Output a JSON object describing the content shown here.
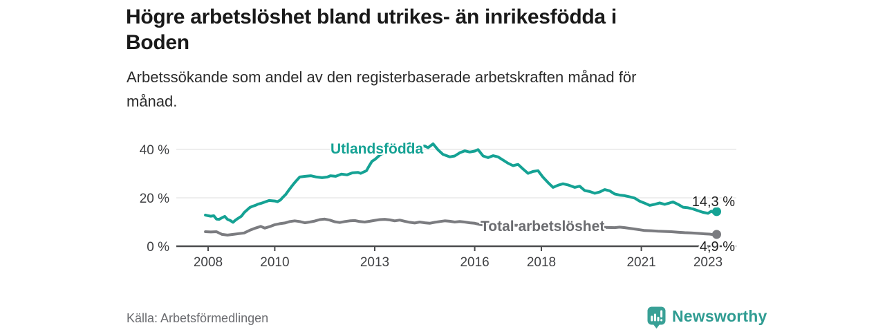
{
  "header": {
    "title_lines": [
      "Högre arbetslöshet bland utrikes- än inrikesfödda i",
      "Boden"
    ],
    "subtitle_lines": [
      "Arbetssökande som andel av den registerbaserade arbetskraften månad för",
      "månad."
    ]
  },
  "footer": {
    "source": "Källa: Arbetsförmedlingen",
    "brand": "Newsworthy",
    "brand_color": "#2f9c92",
    "brand_icon_color": "#38a096"
  },
  "chart_data": {
    "type": "line",
    "grid": true,
    "grid_color": "#dcdcdc",
    "axis_color": "#4a4b4d",
    "tick_label_color": "#3f4043",
    "x_axis": {
      "range": [
        2007.05,
        2023.85
      ],
      "ticks": [
        {
          "year": 2008,
          "label": "2008"
        },
        {
          "year": 2010,
          "label": "2010"
        },
        {
          "year": 2013,
          "label": "2013"
        },
        {
          "year": 2016,
          "label": "2016"
        },
        {
          "year": 2018,
          "label": "2018"
        },
        {
          "year": 2021,
          "label": "2021"
        },
        {
          "year": 2023,
          "label": "2023"
        }
      ]
    },
    "y_axis": {
      "range": [
        0,
        45
      ],
      "ticks": [
        {
          "value": 0,
          "label": "0 %"
        },
        {
          "value": 20,
          "label": "20 %"
        },
        {
          "value": 40,
          "label": "40 %"
        }
      ]
    },
    "series": [
      {
        "name": "Utlandsfödda",
        "color": "#15a294",
        "label_color": "#15a294",
        "end_label": "14,3 %",
        "end_value": 14.3,
        "points": [
          [
            2007.92,
            12.9
          ],
          [
            2008.0,
            12.6
          ],
          [
            2008.08,
            12.4
          ],
          [
            2008.17,
            12.6
          ],
          [
            2008.25,
            11.2
          ],
          [
            2008.33,
            11.1
          ],
          [
            2008.42,
            11.8
          ],
          [
            2008.5,
            12.3
          ],
          [
            2008.58,
            11.1
          ],
          [
            2008.67,
            10.6
          ],
          [
            2008.75,
            9.9
          ],
          [
            2008.83,
            10.9
          ],
          [
            2008.92,
            11.7
          ],
          [
            2009.0,
            12.4
          ],
          [
            2009.08,
            13.9
          ],
          [
            2009.17,
            15.0
          ],
          [
            2009.25,
            16.0
          ],
          [
            2009.33,
            16.5
          ],
          [
            2009.42,
            16.9
          ],
          [
            2009.5,
            17.4
          ],
          [
            2009.58,
            17.7
          ],
          [
            2009.67,
            18.1
          ],
          [
            2009.83,
            18.9
          ],
          [
            2010.0,
            18.7
          ],
          [
            2010.08,
            18.4
          ],
          [
            2010.17,
            19.1
          ],
          [
            2010.25,
            20.3
          ],
          [
            2010.33,
            21.4
          ],
          [
            2010.42,
            23.1
          ],
          [
            2010.5,
            24.6
          ],
          [
            2010.58,
            26.0
          ],
          [
            2010.67,
            27.4
          ],
          [
            2010.75,
            28.6
          ],
          [
            2010.92,
            28.9
          ],
          [
            2011.08,
            29.1
          ],
          [
            2011.25,
            28.6
          ],
          [
            2011.42,
            28.3
          ],
          [
            2011.58,
            28.6
          ],
          [
            2011.67,
            29.1
          ],
          [
            2011.83,
            28.9
          ],
          [
            2012.0,
            29.8
          ],
          [
            2012.17,
            29.5
          ],
          [
            2012.33,
            30.3
          ],
          [
            2012.5,
            30.5
          ],
          [
            2012.58,
            30.1
          ],
          [
            2012.75,
            31.2
          ],
          [
            2012.83,
            33.1
          ],
          [
            2012.92,
            35.1
          ],
          [
            2013.0,
            35.8
          ],
          [
            2013.15,
            37.6
          ],
          [
            2013.3,
            38.9
          ],
          [
            2013.45,
            39.8
          ],
          [
            2013.6,
            40.3
          ],
          [
            2013.75,
            40.0
          ],
          [
            2013.9,
            41.3
          ],
          [
            2014.05,
            42.4
          ],
          [
            2014.2,
            41.5
          ],
          [
            2014.35,
            40.9
          ],
          [
            2014.5,
            41.4
          ],
          [
            2014.6,
            40.7
          ],
          [
            2014.75,
            42.3
          ],
          [
            2014.9,
            39.8
          ],
          [
            2015.05,
            37.9
          ],
          [
            2015.25,
            36.9
          ],
          [
            2015.4,
            37.3
          ],
          [
            2015.55,
            38.6
          ],
          [
            2015.7,
            39.4
          ],
          [
            2015.85,
            38.9
          ],
          [
            2016.0,
            39.3
          ],
          [
            2016.1,
            39.9
          ],
          [
            2016.25,
            37.3
          ],
          [
            2016.4,
            36.6
          ],
          [
            2016.55,
            37.4
          ],
          [
            2016.7,
            36.9
          ],
          [
            2016.85,
            35.6
          ],
          [
            2017.0,
            34.3
          ],
          [
            2017.15,
            33.3
          ],
          [
            2017.3,
            33.8
          ],
          [
            2017.45,
            31.9
          ],
          [
            2017.6,
            30.1
          ],
          [
            2017.75,
            30.9
          ],
          [
            2017.9,
            31.2
          ],
          [
            2018.05,
            28.5
          ],
          [
            2018.2,
            26.3
          ],
          [
            2018.35,
            24.3
          ],
          [
            2018.5,
            25.2
          ],
          [
            2018.65,
            25.8
          ],
          [
            2018.8,
            25.3
          ],
          [
            2019.0,
            24.3
          ],
          [
            2019.15,
            24.8
          ],
          [
            2019.3,
            23.0
          ],
          [
            2019.45,
            22.6
          ],
          [
            2019.6,
            21.9
          ],
          [
            2019.75,
            22.4
          ],
          [
            2019.9,
            23.4
          ],
          [
            2020.05,
            22.9
          ],
          [
            2020.2,
            21.6
          ],
          [
            2020.35,
            21.1
          ],
          [
            2020.5,
            20.9
          ],
          [
            2020.65,
            20.4
          ],
          [
            2020.8,
            19.9
          ],
          [
            2020.95,
            18.6
          ],
          [
            2021.1,
            17.8
          ],
          [
            2021.25,
            16.9
          ],
          [
            2021.4,
            17.3
          ],
          [
            2021.55,
            17.9
          ],
          [
            2021.7,
            17.3
          ],
          [
            2021.85,
            17.9
          ],
          [
            2021.95,
            18.3
          ],
          [
            2022.1,
            17.3
          ],
          [
            2022.25,
            16.1
          ],
          [
            2022.4,
            15.9
          ],
          [
            2022.55,
            15.4
          ],
          [
            2022.7,
            14.7
          ],
          [
            2022.85,
            14.0
          ],
          [
            2023.0,
            13.6
          ],
          [
            2023.1,
            14.5
          ],
          [
            2023.18,
            13.8
          ],
          [
            2023.26,
            14.3
          ]
        ]
      },
      {
        "name": "Total arbetslöshet",
        "color": "#7b7c80",
        "label_color": "#6b6c70",
        "end_label": "4,9 %",
        "end_value": 4.9,
        "points": [
          [
            2007.92,
            6.0
          ],
          [
            2008.08,
            5.9
          ],
          [
            2008.25,
            6.0
          ],
          [
            2008.42,
            4.9
          ],
          [
            2008.58,
            4.6
          ],
          [
            2008.75,
            4.9
          ],
          [
            2008.92,
            5.2
          ],
          [
            2009.08,
            5.5
          ],
          [
            2009.25,
            6.6
          ],
          [
            2009.42,
            7.5
          ],
          [
            2009.58,
            8.2
          ],
          [
            2009.7,
            7.5
          ],
          [
            2009.85,
            8.1
          ],
          [
            2010.0,
            8.9
          ],
          [
            2010.15,
            9.3
          ],
          [
            2010.3,
            9.6
          ],
          [
            2010.45,
            10.2
          ],
          [
            2010.6,
            10.5
          ],
          [
            2010.75,
            10.2
          ],
          [
            2010.9,
            9.7
          ],
          [
            2011.05,
            10.0
          ],
          [
            2011.2,
            10.4
          ],
          [
            2011.35,
            11.0
          ],
          [
            2011.5,
            11.2
          ],
          [
            2011.65,
            10.8
          ],
          [
            2011.8,
            10.1
          ],
          [
            2011.95,
            9.8
          ],
          [
            2012.1,
            10.2
          ],
          [
            2012.25,
            10.5
          ],
          [
            2012.4,
            10.6
          ],
          [
            2012.55,
            10.2
          ],
          [
            2012.7,
            10.0
          ],
          [
            2012.85,
            10.3
          ],
          [
            2013.0,
            10.7
          ],
          [
            2013.15,
            11.0
          ],
          [
            2013.3,
            11.1
          ],
          [
            2013.45,
            10.9
          ],
          [
            2013.6,
            10.5
          ],
          [
            2013.75,
            10.8
          ],
          [
            2013.9,
            10.3
          ],
          [
            2014.05,
            9.9
          ],
          [
            2014.2,
            9.6
          ],
          [
            2014.35,
            10.0
          ],
          [
            2014.5,
            9.7
          ],
          [
            2014.65,
            9.5
          ],
          [
            2014.8,
            9.9
          ],
          [
            2014.95,
            10.2
          ],
          [
            2015.1,
            10.5
          ],
          [
            2015.25,
            10.3
          ],
          [
            2015.4,
            10.0
          ],
          [
            2015.55,
            10.2
          ],
          [
            2015.7,
            10.0
          ],
          [
            2015.85,
            9.7
          ],
          [
            2016.0,
            9.5
          ],
          [
            2016.15,
            9.0
          ],
          [
            2016.3,
            8.7
          ],
          [
            2016.6,
            8.9
          ],
          [
            2016.9,
            9.1
          ],
          [
            2017.2,
            8.7
          ],
          [
            2017.5,
            8.5
          ],
          [
            2017.8,
            8.3
          ],
          [
            2018.1,
            8.1
          ],
          [
            2018.4,
            8.2
          ],
          [
            2018.7,
            8.0
          ],
          [
            2019.0,
            7.9
          ],
          [
            2019.3,
            7.8
          ],
          [
            2019.6,
            7.7
          ],
          [
            2019.9,
            7.8
          ],
          [
            2020.2,
            7.7
          ],
          [
            2020.35,
            7.9
          ],
          [
            2020.5,
            7.7
          ],
          [
            2020.65,
            7.4
          ],
          [
            2020.8,
            7.1
          ],
          [
            2020.95,
            6.8
          ],
          [
            2021.1,
            6.5
          ],
          [
            2021.3,
            6.4
          ],
          [
            2021.5,
            6.2
          ],
          [
            2021.7,
            6.1
          ],
          [
            2021.9,
            6.0
          ],
          [
            2022.1,
            5.8
          ],
          [
            2022.3,
            5.6
          ],
          [
            2022.5,
            5.5
          ],
          [
            2022.7,
            5.3
          ],
          [
            2022.9,
            5.1
          ],
          [
            2023.05,
            5.0
          ],
          [
            2023.15,
            4.8
          ],
          [
            2023.26,
            4.9
          ]
        ]
      }
    ]
  }
}
